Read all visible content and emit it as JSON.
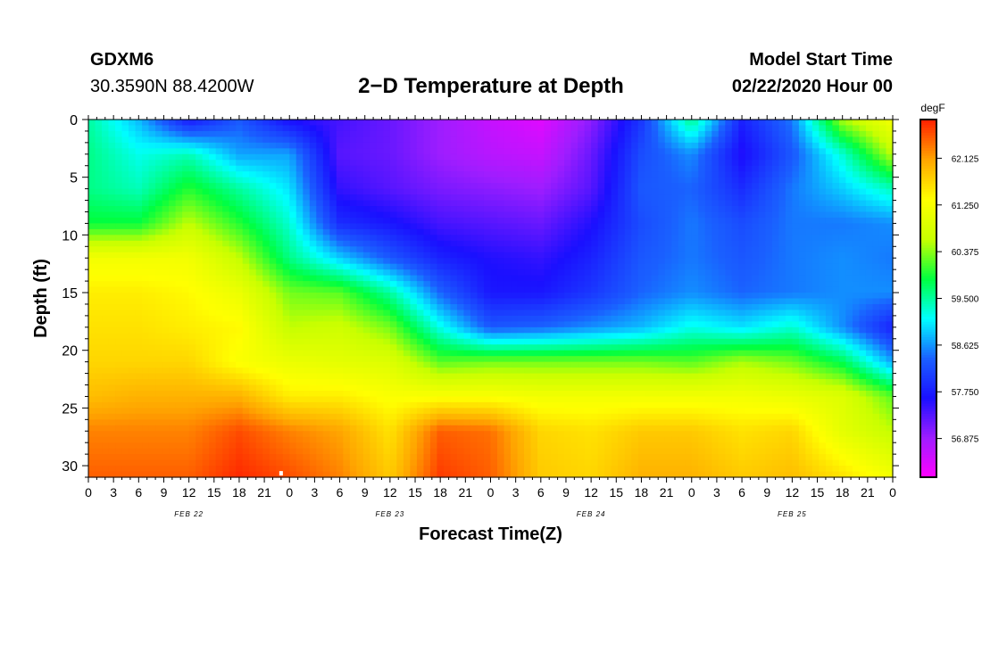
{
  "header": {
    "station": "GDXM6",
    "coordinates": "30.3590N 88.4200W",
    "title": "2−D Temperature at Depth",
    "model_start_label": "Model Start Time",
    "model_start_value": "02/22/2020 Hour 00"
  },
  "chart_data": {
    "type": "heatmap",
    "title": "2−D Temperature at Depth",
    "xlabel": "Forecast Time(Z)",
    "ylabel": "Depth (ft)",
    "x_ticks": [
      "0",
      "3",
      "6",
      "9",
      "12",
      "15",
      "18",
      "21",
      "0",
      "3",
      "6",
      "9",
      "12",
      "15",
      "18",
      "21",
      "0",
      "3",
      "6",
      "9",
      "12",
      "15",
      "18",
      "21",
      "0",
      "3",
      "6",
      "9",
      "12",
      "15",
      "18",
      "21",
      "0"
    ],
    "x_range_hours": [
      0,
      96
    ],
    "date_labels": [
      {
        "label": "FEB 22",
        "hour": 12
      },
      {
        "label": "FEB 23",
        "hour": 36
      },
      {
        "label": "FEB 24",
        "hour": 60
      },
      {
        "label": "FEB 25",
        "hour": 84
      }
    ],
    "y_ticks": [
      0,
      5,
      10,
      15,
      20,
      25,
      30
    ],
    "y_range_ft": [
      0,
      31
    ],
    "colorbar": {
      "unit": "degF",
      "ticks": [
        62.125,
        61.25,
        60.375,
        59.5,
        58.625,
        57.75,
        56.875
      ],
      "range": [
        56.15,
        62.85
      ],
      "stops": [
        "#ff00ff",
        "#9f1dff",
        "#1a10ff",
        "#1a60ff",
        "#00ffff",
        "#00ff40",
        "#c8ff00",
        "#ffff00",
        "#ffa500",
        "#ff2000"
      ]
    },
    "grid_hours": [
      0,
      6,
      12,
      18,
      24,
      30,
      36,
      42,
      48,
      54,
      60,
      66,
      72,
      78,
      84,
      90,
      96
    ],
    "grid_depths_ft": [
      0,
      3,
      6,
      9,
      12,
      15,
      18,
      21,
      24,
      27,
      31
    ],
    "temperature_degF": [
      [
        59.5,
        58.8,
        57.7,
        58.3,
        57.6,
        57.4,
        57.2,
        56.9,
        56.6,
        56.4,
        57.0,
        58.0,
        59.6,
        57.8,
        58.5,
        60.5,
        61.2
      ],
      [
        59.6,
        59.2,
        59.4,
        58.7,
        58.7,
        57.3,
        57.2,
        56.9,
        56.7,
        56.6,
        57.2,
        58.2,
        58.6,
        57.6,
        58.3,
        59.3,
        60.6
      ],
      [
        59.6,
        59.4,
        60.0,
        59.5,
        59.0,
        57.5,
        57.3,
        57.1,
        57.0,
        56.9,
        57.3,
        58.3,
        58.4,
        57.9,
        58.5,
        58.9,
        59.4
      ],
      [
        59.9,
        59.9,
        60.6,
        60.0,
        59.3,
        57.9,
        57.7,
        57.4,
        57.3,
        57.2,
        57.6,
        58.2,
        58.5,
        58.2,
        58.5,
        58.5,
        58.6
      ],
      [
        61.2,
        61.2,
        61.2,
        60.6,
        59.6,
        58.9,
        58.3,
        57.8,
        57.6,
        57.5,
        57.8,
        58.3,
        58.5,
        58.3,
        58.5,
        58.6,
        58.5
      ],
      [
        61.5,
        61.5,
        61.4,
        61.1,
        60.3,
        60.2,
        59.5,
        58.4,
        57.7,
        57.7,
        58.0,
        58.4,
        58.6,
        58.4,
        58.5,
        58.6,
        58.6
      ],
      [
        61.6,
        61.6,
        61.5,
        61.4,
        60.6,
        60.7,
        60.3,
        59.2,
        58.3,
        58.4,
        58.6,
        58.8,
        59.2,
        59.0,
        59.3,
        58.6,
        57.8
      ],
      [
        61.7,
        61.7,
        61.7,
        61.3,
        61.1,
        61.0,
        60.9,
        60.2,
        60.3,
        60.3,
        60.3,
        60.3,
        60.2,
        60.5,
        60.3,
        59.8,
        58.7
      ],
      [
        61.9,
        62.0,
        62.0,
        62.0,
        61.5,
        61.5,
        61.3,
        61.3,
        61.3,
        61.2,
        61.2,
        61.2,
        61.2,
        61.2,
        61.1,
        60.9,
        60.2
      ],
      [
        62.3,
        62.3,
        62.3,
        62.6,
        62.3,
        62.1,
        61.6,
        62.5,
        62.4,
        61.7,
        61.6,
        61.8,
        61.8,
        61.6,
        61.7,
        61.0,
        60.6
      ],
      [
        62.5,
        62.5,
        62.5,
        62.8,
        62.6,
        62.3,
        61.8,
        62.7,
        62.5,
        61.8,
        61.7,
        62.0,
        62.0,
        61.8,
        61.9,
        61.6,
        61.2
      ]
    ],
    "marker": {
      "hour": 23.0,
      "depth_ft": 30.7
    }
  }
}
